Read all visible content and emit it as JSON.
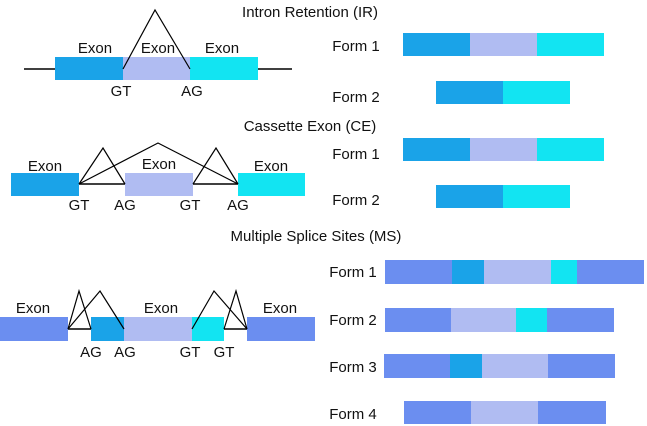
{
  "colors": {
    "exon_dark": "#1aa3e8",
    "exon_light": "#b0bcf2",
    "exon_cyan": "#12e4f2",
    "exon_periwinkle": "#6b8ef0",
    "line": "#000000"
  },
  "ir": {
    "title": "Intron Retention (IR)",
    "exon_left": "Exon",
    "exon_mid": "Exon",
    "exon_right": "Exon",
    "site_gt": "GT",
    "site_ag": "AG",
    "form1": "Form 1",
    "form2": "Form 2"
  },
  "ce": {
    "title": "Cassette Exon (CE)",
    "exon_left": "Exon",
    "exon_mid": "Exon",
    "exon_right": "Exon",
    "site_gt1": "GT",
    "site_ag1": "AG",
    "site_gt2": "GT",
    "site_ag2": "AG",
    "form1": "Form 1",
    "form2": "Form 2"
  },
  "ms": {
    "title": "Multiple Splice Sites (MS)",
    "exon_left": "Exon",
    "exon_mid": "Exon",
    "exon_right": "Exon",
    "site_ag1": "AG",
    "site_ag2": "AG",
    "site_gt1": "GT",
    "site_gt2": "GT",
    "form1": "Form 1",
    "form2": "Form 2",
    "form3": "Form 3",
    "form4": "Form 4"
  }
}
